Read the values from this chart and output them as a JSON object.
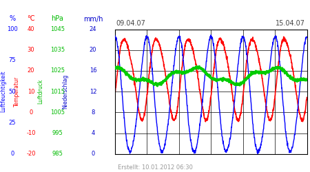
{
  "date_start": "09.04.07",
  "date_end": "15.04.07",
  "created": "Erstellt: 10.01.2012 06:30",
  "bg_color": "#ffffff",
  "n_days": 6,
  "n_points": 1000,
  "blue_amp": 0.46,
  "blue_mean": 0.46,
  "blue_period": 1.0,
  "blue_phase": 1.6,
  "red_amp": 0.32,
  "red_mean": 0.62,
  "red_period": 1.0,
  "red_phase": -0.5,
  "green_amp": 0.055,
  "green_mean": 0.625,
  "green_period": 2.5,
  "green_phase": 1.8,
  "pct_ticks": [
    100,
    75,
    50,
    25,
    0
  ],
  "temp_ticks": [
    40,
    30,
    20,
    10,
    0,
    -10,
    -20
  ],
  "hpa_ticks": [
    1045,
    1035,
    1025,
    1015,
    1005,
    995,
    985
  ],
  "mmh_ticks": [
    24,
    20,
    16,
    12,
    8,
    4,
    0
  ],
  "pct_color": "#0000ff",
  "temp_color": "#ff0000",
  "hpa_color": "#00bb00",
  "mmh_color": "#0000cc",
  "blue_color": "#0000ff",
  "red_color": "#ff0000",
  "green_color": "#00cc00",
  "label_fontsize": 6,
  "header_fontsize": 7,
  "rotlabel_fontsize": 5.5,
  "date_fontsize": 7,
  "footer_fontsize": 6,
  "footer_color": "#999999"
}
